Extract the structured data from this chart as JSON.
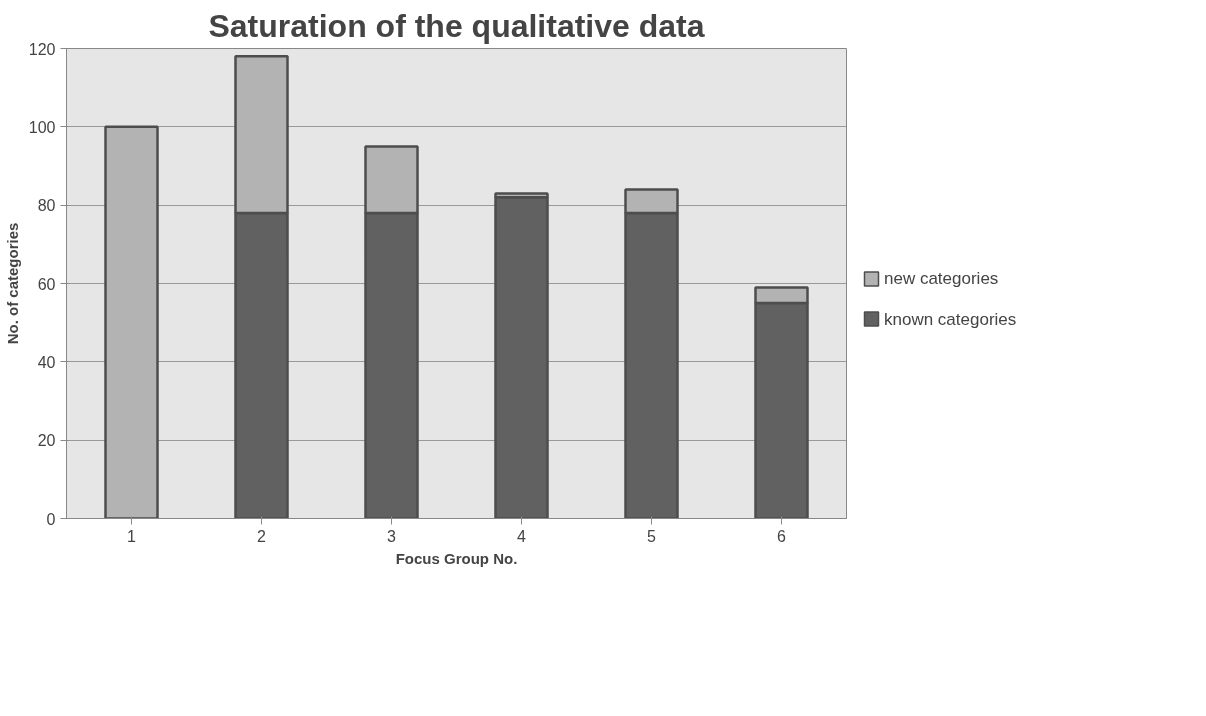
{
  "chart_data": {
    "type": "bar",
    "title": "Saturation of the qualitative data",
    "xlabel": "Focus Group No.",
    "ylabel": "No. of categories",
    "categories": [
      "1",
      "2",
      "3",
      "4",
      "5",
      "6"
    ],
    "stacked": true,
    "series": [
      {
        "name": "known categories",
        "color": "#616161",
        "values": [
          0,
          78,
          78,
          82,
          78,
          55
        ]
      },
      {
        "name": "new categories",
        "color": "#b3b3b3",
        "values": [
          100,
          40,
          17,
          1,
          6,
          4
        ]
      }
    ],
    "ylim": [
      0,
      120
    ],
    "yticks": [
      0,
      20,
      40,
      60,
      80,
      100,
      120
    ],
    "grid": "y",
    "legend": "right"
  }
}
